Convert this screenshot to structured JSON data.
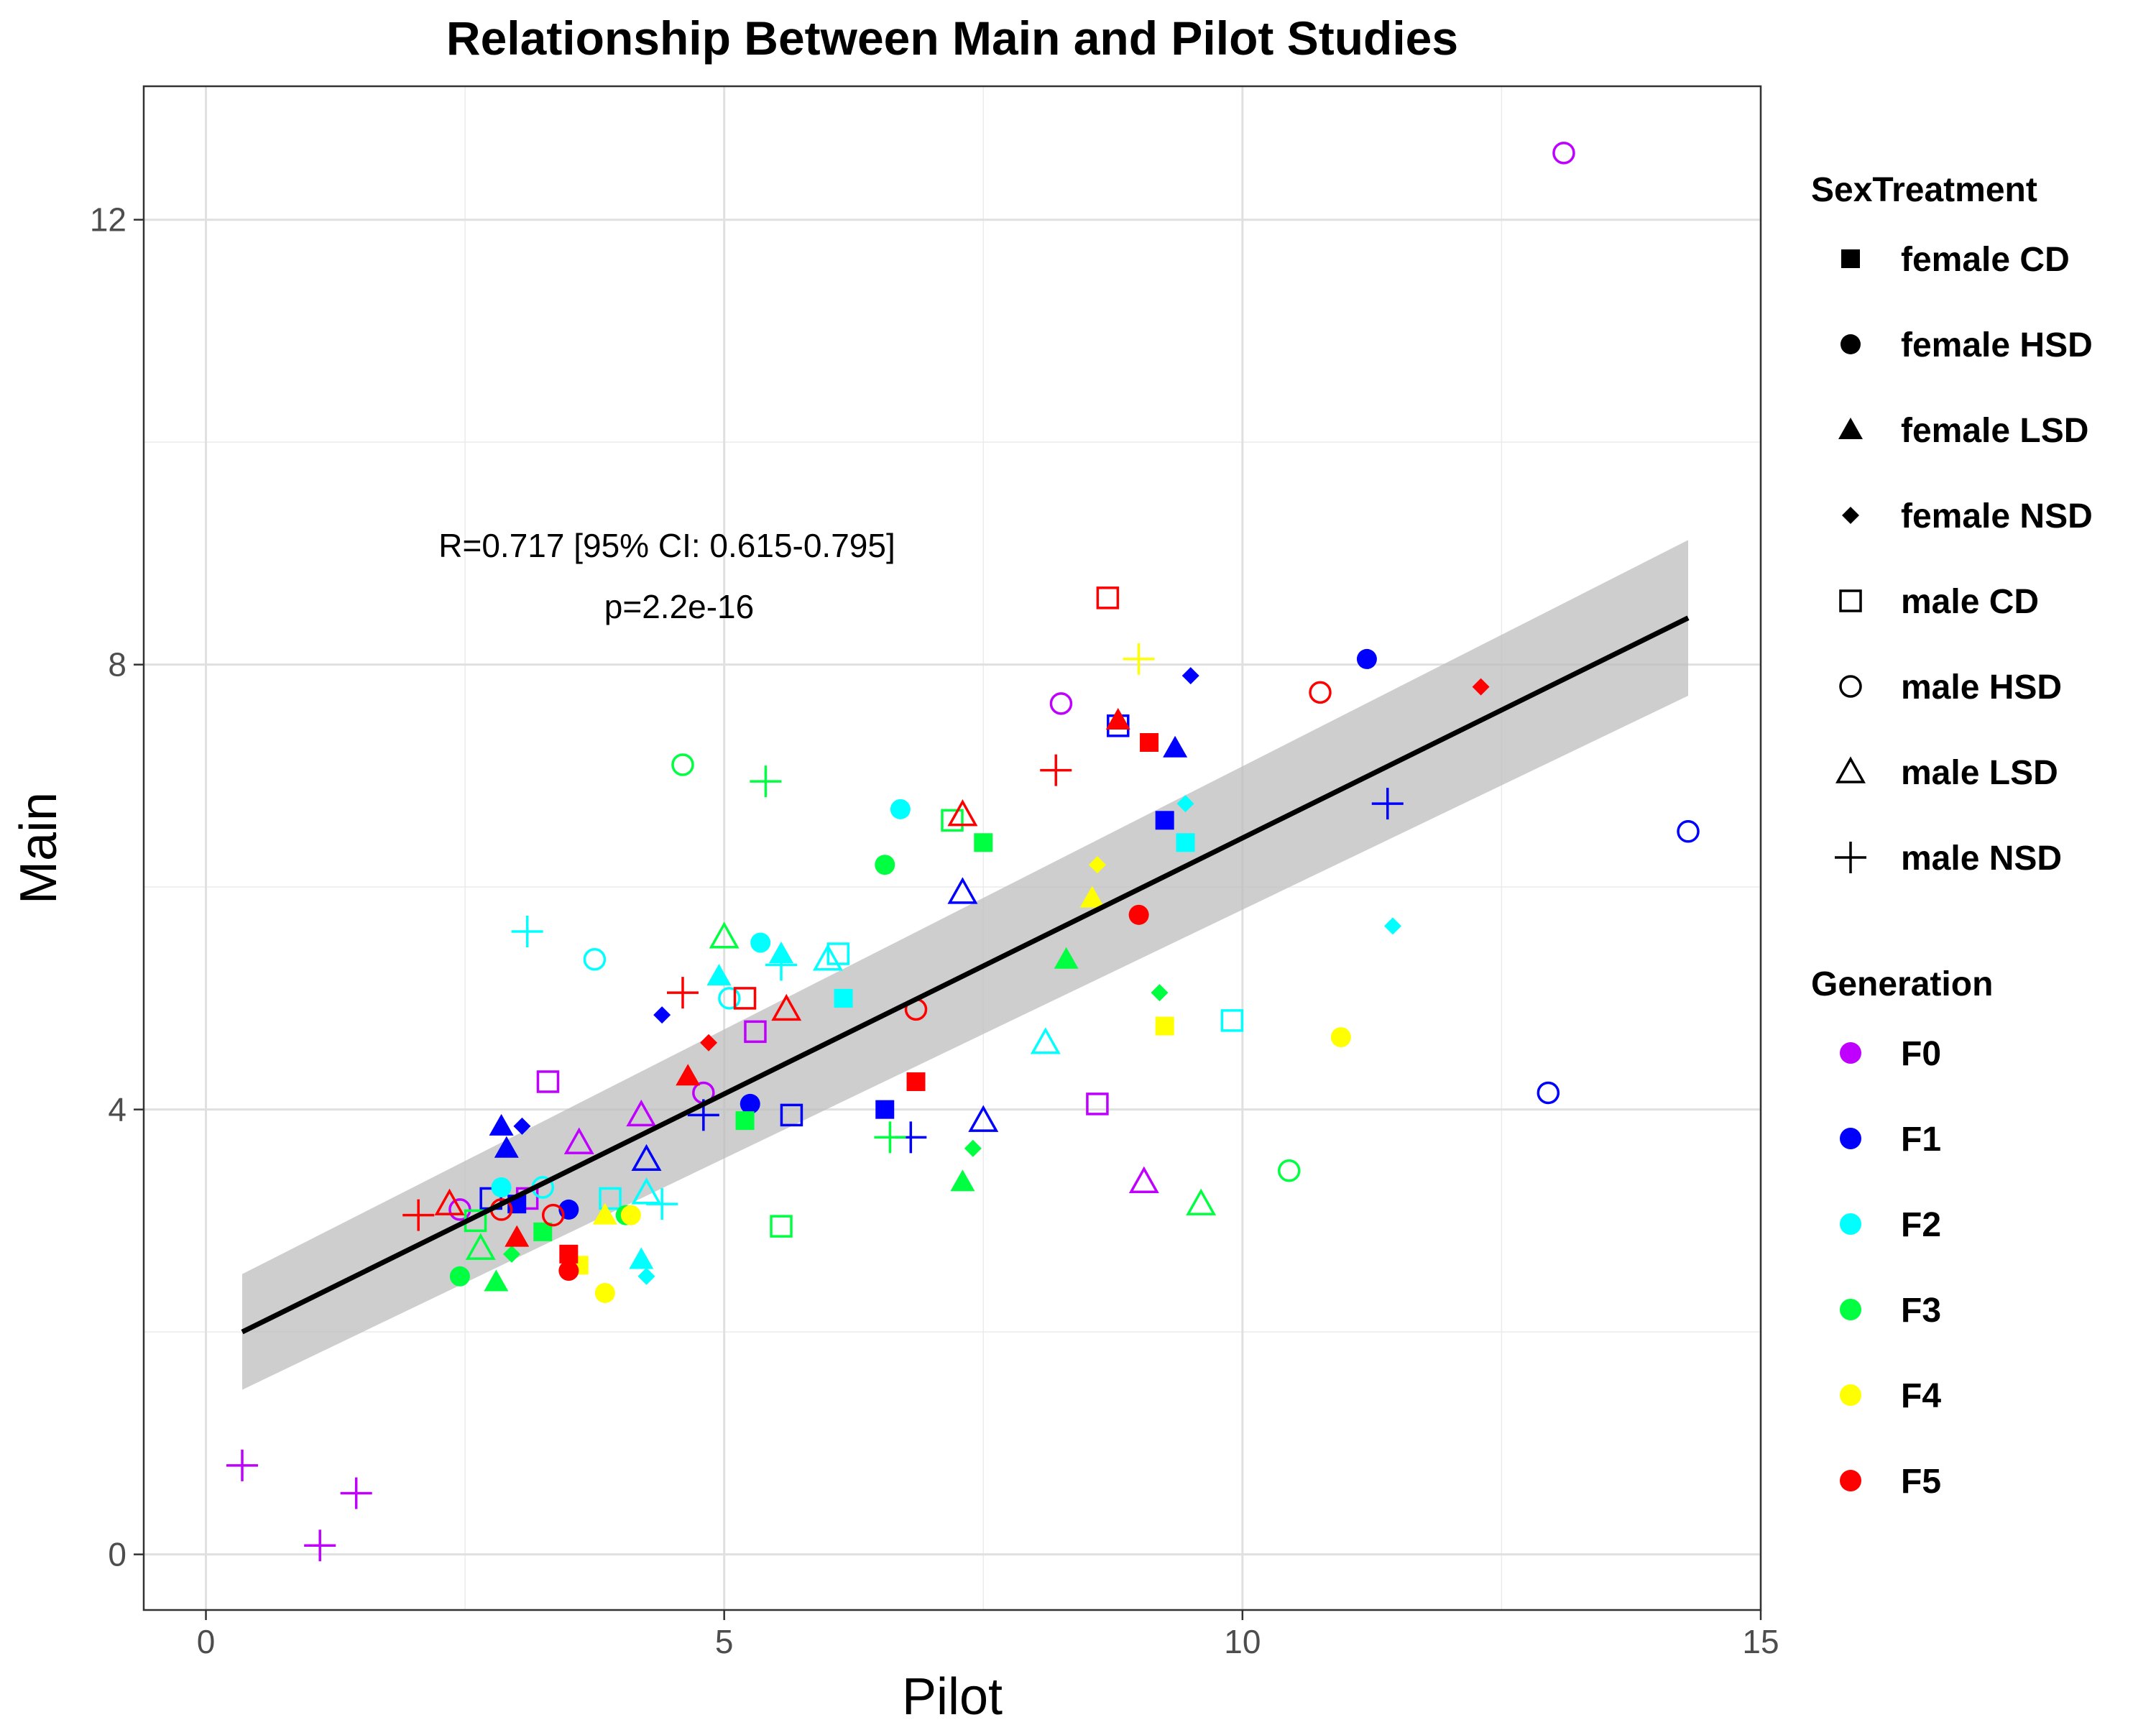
{
  "chart_data": {
    "type": "scatter",
    "title": "Relationship Between Main and Pilot Studies",
    "xlabel": "Pilot",
    "ylabel": "Main",
    "xlim": [
      -0.6,
      15
    ],
    "ylim": [
      -0.5,
      13.2
    ],
    "x_ticks": [
      0,
      5,
      10,
      15
    ],
    "y_ticks": [
      0,
      4,
      8,
      12
    ],
    "grid": true,
    "annotation": [
      "R=0.717 [95% CI: 0.615-0.795]",
      "p=2.2e-16"
    ],
    "regression": {
      "x": [
        0.35,
        14.3
      ],
      "y": [
        2.0,
        8.42
      ],
      "ci_upper": [
        2.52,
        9.12
      ],
      "ci_lower": [
        1.48,
        7.72
      ]
    },
    "legend_sex": {
      "title": "SexTreatment",
      "items": [
        {
          "label": "female CD",
          "shape": "square-filled"
        },
        {
          "label": "female HSD",
          "shape": "circle-filled"
        },
        {
          "label": "female LSD",
          "shape": "triangle-filled"
        },
        {
          "label": "female NSD",
          "shape": "diamond-filled"
        },
        {
          "label": "male CD",
          "shape": "square-open"
        },
        {
          "label": "male HSD",
          "shape": "circle-open"
        },
        {
          "label": "male LSD",
          "shape": "triangle-open"
        },
        {
          "label": "male NSD",
          "shape": "plus"
        }
      ]
    },
    "legend_generation": {
      "title": "Generation",
      "items": [
        {
          "label": "F0",
          "color": "#BF00FF"
        },
        {
          "label": "F1",
          "color": "#0000FF"
        },
        {
          "label": "F2",
          "color": "#00FFFF"
        },
        {
          "label": "F3",
          "color": "#00FF40"
        },
        {
          "label": "F4",
          "color": "#FFFF00"
        },
        {
          "label": "F5",
          "color": "#FF0000"
        }
      ]
    },
    "points": [
      [
        13.1,
        12.6,
        "F0",
        "male HSD"
      ],
      [
        0.35,
        0.8,
        "F0",
        "male NSD"
      ],
      [
        1.1,
        0.08,
        "F0",
        "male NSD"
      ],
      [
        1.45,
        0.55,
        "F0",
        "male NSD"
      ],
      [
        8.25,
        7.65,
        "F0",
        "male HSD"
      ],
      [
        3.3,
        4.25,
        "F0",
        "male CD"
      ],
      [
        3.6,
        3.7,
        "F0",
        "male LSD"
      ],
      [
        4.2,
        3.95,
        "F0",
        "male LSD"
      ],
      [
        4.8,
        4.15,
        "F0",
        "male HSD"
      ],
      [
        5.3,
        4.7,
        "F0",
        "male CD"
      ],
      [
        8.6,
        4.05,
        "F0",
        "male CD"
      ],
      [
        9.05,
        3.35,
        "F0",
        "male LSD"
      ],
      [
        2.45,
        3.1,
        "F0",
        "male HSD"
      ],
      [
        3.1,
        3.2,
        "F0",
        "male CD"
      ],
      [
        11.2,
        8.05,
        "F1",
        "female HSD"
      ],
      [
        9.5,
        7.9,
        "F1",
        "female NSD"
      ],
      [
        9.35,
        7.25,
        "F1",
        "female LSD"
      ],
      [
        9.25,
        6.6,
        "F1",
        "female CD"
      ],
      [
        14.3,
        6.5,
        "F1",
        "male HSD"
      ],
      [
        11.4,
        6.75,
        "F1",
        "male NSD"
      ],
      [
        12.95,
        4.15,
        "F1",
        "male HSD"
      ],
      [
        8.8,
        7.45,
        "F1",
        "male CD"
      ],
      [
        7.3,
        5.95,
        "F1",
        "male LSD"
      ],
      [
        6.55,
        4.0,
        "F1",
        "female CD"
      ],
      [
        7.5,
        3.9,
        "F1",
        "male LSD"
      ],
      [
        6.8,
        3.75,
        "F1",
        "male NSD"
      ],
      [
        5.65,
        3.95,
        "F1",
        "male CD"
      ],
      [
        5.25,
        4.05,
        "F1",
        "female HSD"
      ],
      [
        4.8,
        3.95,
        "F1",
        "male NSD"
      ],
      [
        4.4,
        4.85,
        "F1",
        "female NSD"
      ],
      [
        4.25,
        3.55,
        "F1",
        "male LSD"
      ],
      [
        2.85,
        3.85,
        "F1",
        "female LSD"
      ],
      [
        3.05,
        3.85,
        "F1",
        "female NSD"
      ],
      [
        2.9,
        3.65,
        "F1",
        "female LSD"
      ],
      [
        3.5,
        3.1,
        "F1",
        "female HSD"
      ],
      [
        2.75,
        3.2,
        "F1",
        "male CD"
      ],
      [
        3.0,
        3.15,
        "F1",
        "female CD"
      ],
      [
        11.45,
        5.65,
        "F2",
        "female NSD"
      ],
      [
        9.45,
        6.75,
        "F2",
        "female NSD"
      ],
      [
        9.45,
        6.4,
        "F2",
        "female CD"
      ],
      [
        9.9,
        4.8,
        "F2",
        "male CD"
      ],
      [
        8.1,
        4.6,
        "F2",
        "male LSD"
      ],
      [
        6.7,
        6.7,
        "F2",
        "female HSD"
      ],
      [
        6.1,
        5.4,
        "F2",
        "male CD"
      ],
      [
        6.0,
        5.35,
        "F2",
        "male LSD"
      ],
      [
        6.15,
        5.0,
        "F2",
        "female CD"
      ],
      [
        5.55,
        5.4,
        "F2",
        "female LSD"
      ],
      [
        5.55,
        5.3,
        "F2",
        "male NSD"
      ],
      [
        5.35,
        5.5,
        "F2",
        "female HSD"
      ],
      [
        4.95,
        5.2,
        "F2",
        "female LSD"
      ],
      [
        5.05,
        5.0,
        "F2",
        "male HSD"
      ],
      [
        3.75,
        5.35,
        "F2",
        "male HSD"
      ],
      [
        3.1,
        5.6,
        "F2",
        "male NSD"
      ],
      [
        3.9,
        3.2,
        "F2",
        "male CD"
      ],
      [
        4.25,
        3.25,
        "F2",
        "male LSD"
      ],
      [
        4.4,
        3.15,
        "F2",
        "male NSD"
      ],
      [
        4.2,
        2.65,
        "F2",
        "female LSD"
      ],
      [
        4.25,
        2.5,
        "F2",
        "female NSD"
      ],
      [
        2.85,
        3.3,
        "F2",
        "female HSD"
      ],
      [
        3.25,
        3.3,
        "F2",
        "male HSD"
      ],
      [
        4.6,
        7.1,
        "F3",
        "male HSD"
      ],
      [
        5.4,
        6.95,
        "F3",
        "male NSD"
      ],
      [
        7.2,
        6.6,
        "F3",
        "male CD"
      ],
      [
        7.5,
        6.4,
        "F3",
        "female CD"
      ],
      [
        6.55,
        6.2,
        "F3",
        "female HSD"
      ],
      [
        5.0,
        5.55,
        "F3",
        "male LSD"
      ],
      [
        8.3,
        5.35,
        "F3",
        "female LSD"
      ],
      [
        9.2,
        5.05,
        "F3",
        "female NSD"
      ],
      [
        10.45,
        3.45,
        "F3",
        "male HSD"
      ],
      [
        9.6,
        3.15,
        "F3",
        "male LSD"
      ],
      [
        7.3,
        3.35,
        "F3",
        "female LSD"
      ],
      [
        7.4,
        3.65,
        "F3",
        "female NSD"
      ],
      [
        6.6,
        3.75,
        "F3",
        "male NSD"
      ],
      [
        5.2,
        3.9,
        "F3",
        "female CD"
      ],
      [
        5.55,
        2.95,
        "F3",
        "male CD"
      ],
      [
        4.05,
        3.05,
        "F3",
        "female HSD"
      ],
      [
        3.25,
        2.9,
        "F3",
        "female CD"
      ],
      [
        2.95,
        2.7,
        "F3",
        "female NSD"
      ],
      [
        2.8,
        2.45,
        "F3",
        "female LSD"
      ],
      [
        2.45,
        2.5,
        "F3",
        "female HSD"
      ],
      [
        2.65,
        2.75,
        "F3",
        "male LSD"
      ],
      [
        2.6,
        3.0,
        "F3",
        "male CD"
      ],
      [
        9.0,
        8.05,
        "F4",
        "male NSD"
      ],
      [
        8.6,
        6.2,
        "F4",
        "female NSD"
      ],
      [
        8.55,
        5.9,
        "F4",
        "female LSD"
      ],
      [
        9.25,
        4.75,
        "F4",
        "female CD"
      ],
      [
        10.95,
        4.65,
        "F4",
        "female HSD"
      ],
      [
        3.85,
        3.05,
        "F4",
        "female LSD"
      ],
      [
        4.1,
        3.05,
        "F4",
        "female HSD"
      ],
      [
        3.6,
        2.6,
        "F4",
        "female CD"
      ],
      [
        3.85,
        2.35,
        "F4",
        "female HSD"
      ],
      [
        8.7,
        8.6,
        "F5",
        "male CD"
      ],
      [
        10.75,
        7.75,
        "F5",
        "male HSD"
      ],
      [
        12.3,
        7.8,
        "F5",
        "female NSD"
      ],
      [
        8.8,
        7.5,
        "F5",
        "female LSD"
      ],
      [
        9.1,
        7.3,
        "F5",
        "female CD"
      ],
      [
        8.2,
        7.05,
        "F5",
        "male NSD"
      ],
      [
        7.3,
        6.65,
        "F5",
        "male LSD"
      ],
      [
        9.0,
        5.75,
        "F5",
        "female HSD"
      ],
      [
        6.85,
        4.9,
        "F5",
        "male HSD"
      ],
      [
        6.85,
        4.25,
        "F5",
        "female CD"
      ],
      [
        5.2,
        5.0,
        "F5",
        "male CD"
      ],
      [
        5.6,
        4.9,
        "F5",
        "male LSD"
      ],
      [
        4.6,
        5.05,
        "F5",
        "male NSD"
      ],
      [
        4.85,
        4.6,
        "F5",
        "female NSD"
      ],
      [
        4.65,
        4.3,
        "F5",
        "female LSD"
      ],
      [
        2.05,
        3.05,
        "F5",
        "male NSD"
      ],
      [
        2.35,
        3.15,
        "F5",
        "male LSD"
      ],
      [
        2.85,
        3.1,
        "F5",
        "male HSD"
      ],
      [
        3.35,
        3.05,
        "F5",
        "male HSD"
      ],
      [
        3.0,
        2.85,
        "F5",
        "female LSD"
      ],
      [
        3.5,
        2.7,
        "F5",
        "female CD"
      ],
      [
        3.5,
        2.55,
        "F5",
        "female HSD"
      ]
    ]
  }
}
